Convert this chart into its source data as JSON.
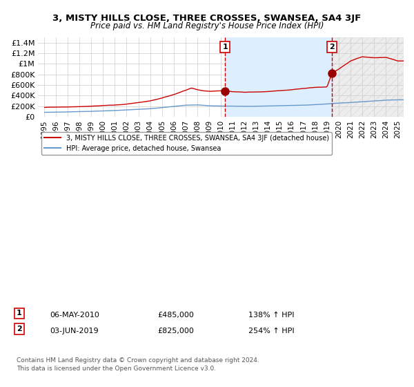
{
  "title": "3, MISTY HILLS CLOSE, THREE CROSSES, SWANSEA, SA4 3JF",
  "subtitle": "Price paid vs. HM Land Registry's House Price Index (HPI)",
  "legend_property": "3, MISTY HILLS CLOSE, THREE CROSSES, SWANSEA, SA4 3JF (detached house)",
  "legend_hpi": "HPI: Average price, detached house, Swansea",
  "annotation1_label": "1",
  "annotation1_date": "06-MAY-2010",
  "annotation1_price": "£485,000",
  "annotation1_hpi": "138% ↑ HPI",
  "annotation2_label": "2",
  "annotation2_date": "03-JUN-2019",
  "annotation2_price": "£825,000",
  "annotation2_hpi": "254% ↑ HPI",
  "footnote1": "Contains HM Land Registry data © Crown copyright and database right 2024.",
  "footnote2": "This data is licensed under the Open Government Licence v3.0.",
  "property_color": "#cc0000",
  "hpi_color": "#6699cc",
  "point_color": "#990000",
  "vline_color": "#cc0000",
  "shading_color": "#ddeeff",
  "hatch_color": "#cccccc",
  "background_color": "#ffffff",
  "grid_color": "#cccccc",
  "ylim": [
    0,
    1500000
  ],
  "yticks": [
    0,
    200000,
    400000,
    600000,
    800000,
    1000000,
    1200000,
    1400000
  ],
  "ytick_labels": [
    "£0",
    "£200K",
    "£400K",
    "£600K",
    "£800K",
    "£1M",
    "£1.2M",
    "£1.4M"
  ],
  "sale1_x": 2010.35,
  "sale1_y": 485000,
  "sale2_x": 2019.42,
  "sale2_y": 825000,
  "xlim": [
    1994.5,
    2025.5
  ],
  "xticks": [
    1995,
    1996,
    1997,
    1998,
    1999,
    2000,
    2001,
    2002,
    2003,
    2004,
    2005,
    2006,
    2007,
    2008,
    2009,
    2010,
    2011,
    2012,
    2013,
    2014,
    2015,
    2016,
    2017,
    2018,
    2019,
    2020,
    2021,
    2022,
    2023,
    2024,
    2025
  ]
}
